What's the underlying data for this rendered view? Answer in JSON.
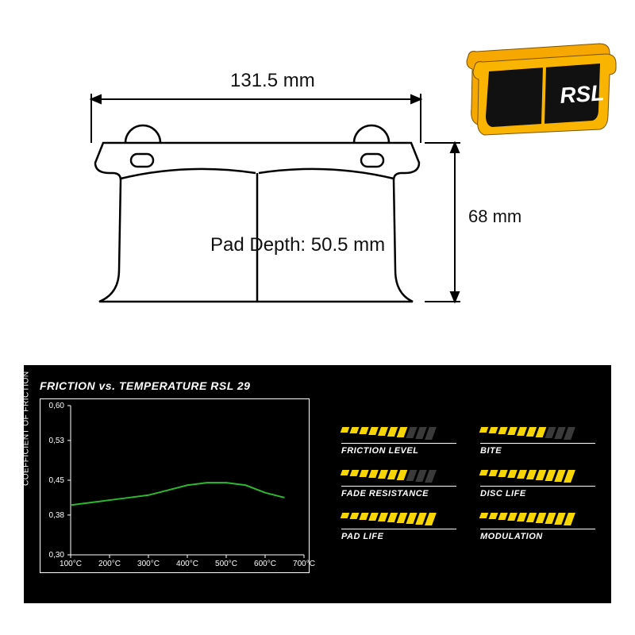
{
  "drawing": {
    "width_label": "131.5 mm",
    "height_label": "68 mm",
    "pad_depth_label": "Pad Depth: 50.5 mm",
    "stroke_color": "#000000",
    "stroke_width": 2
  },
  "product": {
    "brand": "RSL",
    "pad_color": "#f7a800",
    "friction_color": "#111111"
  },
  "panel": {
    "background": "#000000",
    "chart": {
      "title": "FRICTION vs. TEMPERATURE RSL 29",
      "yaxis_label": "COEFFICIENT OF FRICTION",
      "y_ticks": [
        "0,60",
        "0,53",
        "0,45",
        "0,38",
        "0,30"
      ],
      "y_values": [
        0.6,
        0.53,
        0.45,
        0.38,
        0.3
      ],
      "x_ticks": [
        "100°C",
        "200°C",
        "300°C",
        "400°C",
        "500°C",
        "600°C",
        "700°C"
      ],
      "ylim": [
        0.3,
        0.6
      ],
      "xlim": [
        100,
        700
      ],
      "curve": [
        {
          "x": 100,
          "y": 0.4
        },
        {
          "x": 150,
          "y": 0.405
        },
        {
          "x": 200,
          "y": 0.41
        },
        {
          "x": 250,
          "y": 0.415
        },
        {
          "x": 300,
          "y": 0.42
        },
        {
          "x": 350,
          "y": 0.43
        },
        {
          "x": 400,
          "y": 0.44
        },
        {
          "x": 450,
          "y": 0.445
        },
        {
          "x": 500,
          "y": 0.445
        },
        {
          "x": 550,
          "y": 0.44
        },
        {
          "x": 600,
          "y": 0.425
        },
        {
          "x": 650,
          "y": 0.415
        }
      ],
      "curve_color": "#2db92d",
      "curve_width": 2,
      "grid_color": "#ffffff",
      "tick_fontsize": 10
    },
    "ratings": {
      "max_bars": 10,
      "bar_on_color": "#f7d600",
      "bar_off_color": "#3a3a3a",
      "items": [
        {
          "label": "FRICTION LEVEL",
          "value": 7
        },
        {
          "label": "BITE",
          "value": 7
        },
        {
          "label": "FADE RESISTANCE",
          "value": 7
        },
        {
          "label": "DISC LIFE",
          "value": 10
        },
        {
          "label": "PAD LIFE",
          "value": 10
        },
        {
          "label": "MODULATION",
          "value": 10
        }
      ],
      "bar_heights": [
        7,
        8,
        9,
        10,
        11,
        12,
        13,
        14,
        15,
        16
      ]
    }
  }
}
